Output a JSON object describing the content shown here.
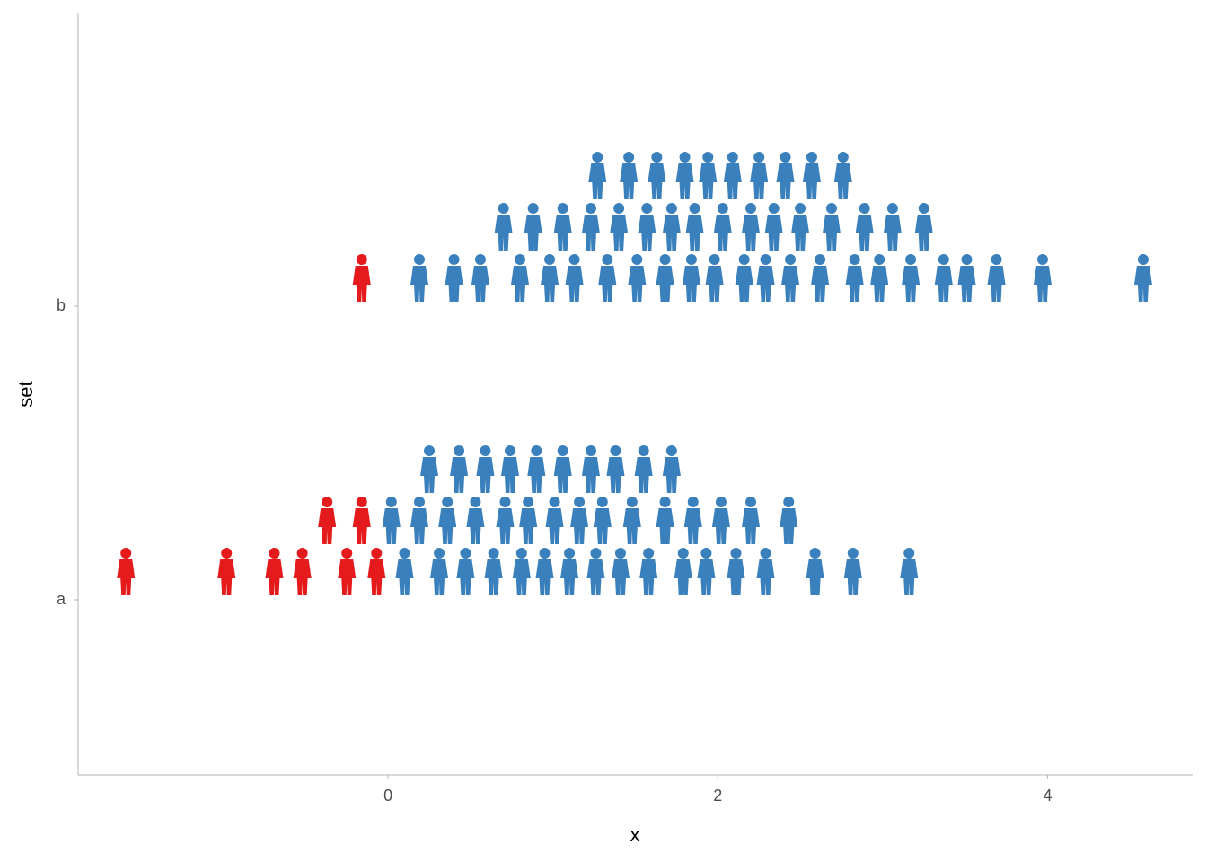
{
  "chart_data": {
    "type": "dotplot",
    "x_label": "x",
    "y_label": "set",
    "categories": [
      "a",
      "b"
    ],
    "xlim": [
      -1.88,
      4.88
    ],
    "xticks": [
      0,
      2,
      4
    ],
    "color": "#3a80bd",
    "negative_color": "#e41a1c",
    "series": [
      {
        "name": "a",
        "rows": [
          [
            -1.59,
            -0.98,
            -0.69,
            -0.52,
            -0.25,
            -0.07,
            0.1,
            0.31,
            0.47,
            0.64,
            0.81,
            0.95,
            1.1,
            1.26,
            1.41,
            1.58,
            1.79,
            1.93,
            2.11,
            2.29,
            2.59,
            2.82,
            3.16
          ],
          [
            -0.37,
            -0.16,
            0.02,
            0.19,
            0.36,
            0.53,
            0.71,
            0.85,
            1.01,
            1.16,
            1.3,
            1.48,
            1.68,
            1.85,
            2.02,
            2.2,
            2.43
          ],
          [
            0.25,
            0.43,
            0.59,
            0.74,
            0.9,
            1.06,
            1.23,
            1.38,
            1.55,
            1.72
          ]
        ]
      },
      {
        "name": "b",
        "rows": [
          [
            -0.16,
            0.19,
            0.4,
            0.56,
            0.8,
            0.98,
            1.13,
            1.33,
            1.51,
            1.68,
            1.84,
            1.98,
            2.16,
            2.29,
            2.44,
            2.62,
            2.83,
            2.98,
            3.17,
            3.37,
            3.51,
            3.69,
            3.97,
            4.58
          ],
          [
            0.7,
            0.88,
            1.06,
            1.23,
            1.4,
            1.57,
            1.72,
            1.86,
            2.03,
            2.2,
            2.34,
            2.5,
            2.69,
            2.89,
            3.06,
            3.25
          ],
          [
            1.27,
            1.46,
            1.63,
            1.8,
            1.94,
            2.09,
            2.25,
            2.41,
            2.57,
            2.76
          ]
        ]
      }
    ]
  }
}
